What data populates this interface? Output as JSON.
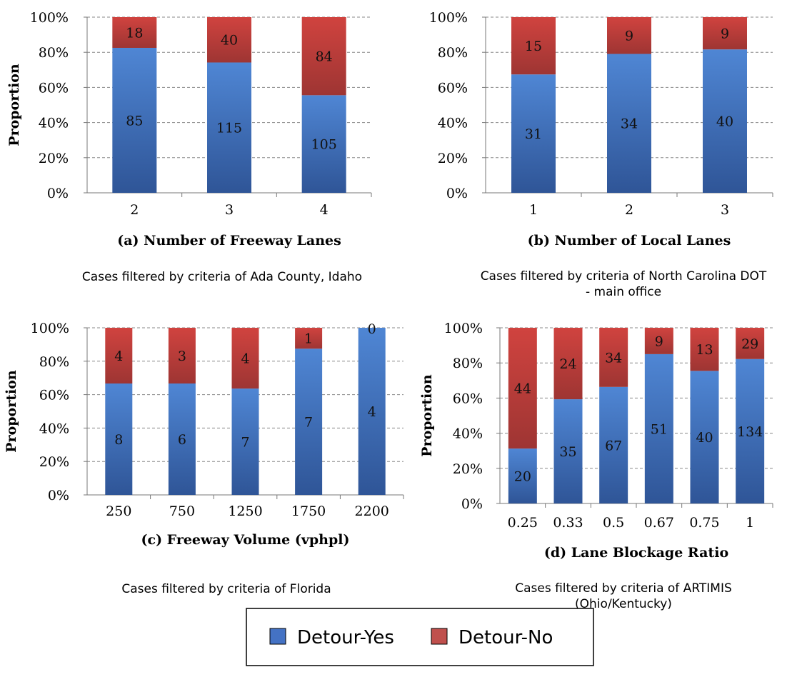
{
  "colors": {
    "detour_yes": "#4472c4",
    "detour_yes_dark": "#2f5597",
    "detour_no": "#c0504d",
    "detour_no_dark": "#943634",
    "gridline": "#888888"
  },
  "legend": {
    "items": [
      {
        "label": "Detour-Yes",
        "color": "#4472c4"
      },
      {
        "label": "Detour-No",
        "color": "#c0504d"
      }
    ]
  },
  "chart_data": [
    {
      "type": "bar",
      "stacked": "percent",
      "title": "(a) Number of Freeway Lanes",
      "xlabel": "(a) Number of Freeway Lanes",
      "ylabel": "Proportion",
      "caption": "Cases filtered by criteria of Ada County, Idaho",
      "categories": [
        "2",
        "3",
        "4"
      ],
      "series": [
        {
          "name": "Detour-Yes",
          "values": [
            85,
            115,
            105
          ]
        },
        {
          "name": "Detour-No",
          "values": [
            18,
            40,
            84
          ]
        }
      ],
      "yticks": [
        "0%",
        "20%",
        "40%",
        "60%",
        "80%",
        "100%"
      ],
      "ylim": [
        0,
        100
      ],
      "grid": "dashed-horizontal"
    },
    {
      "type": "bar",
      "stacked": "percent",
      "title": "(b) Number of Local Lanes",
      "xlabel": "(b) Number of Local Lanes",
      "ylabel": "",
      "caption": "Cases filtered by criteria of North Carolina DOT - main office",
      "categories": [
        "1",
        "2",
        "3"
      ],
      "series": [
        {
          "name": "Detour-Yes",
          "values": [
            31,
            34,
            40
          ]
        },
        {
          "name": "Detour-No",
          "values": [
            15,
            9,
            9
          ]
        }
      ],
      "yticks": [
        "0%",
        "20%",
        "40%",
        "60%",
        "80%",
        "100%"
      ],
      "ylim": [
        0,
        100
      ],
      "grid": "dashed-horizontal"
    },
    {
      "type": "bar",
      "stacked": "percent",
      "title": "(c) Freeway Volume (vphpl)",
      "xlabel": "(c) Freeway Volume (vphpl)",
      "ylabel": "Proportion",
      "caption": "Cases filtered by criteria of Florida",
      "categories": [
        "250",
        "750",
        "1250",
        "1750",
        "2200"
      ],
      "series": [
        {
          "name": "Detour-Yes",
          "values": [
            8,
            6,
            7,
            7,
            4
          ]
        },
        {
          "name": "Detour-No",
          "values": [
            4,
            3,
            4,
            1,
            0
          ]
        }
      ],
      "yticks": [
        "0%",
        "20%",
        "40%",
        "60%",
        "80%",
        "100%"
      ],
      "ylim": [
        0,
        100
      ],
      "grid": "dashed-horizontal"
    },
    {
      "type": "bar",
      "stacked": "percent",
      "title": "(d) Lane Blockage Ratio",
      "xlabel": "(d) Lane Blockage Ratio",
      "ylabel": "Proportion",
      "caption": "Cases filtered by criteria of ARTIMIS (Ohio/Kentucky)",
      "categories": [
        "0.25",
        "0.33",
        "0.5",
        "0.67",
        "0.75",
        "1"
      ],
      "series": [
        {
          "name": "Detour-Yes",
          "values": [
            20,
            35,
            67,
            51,
            40,
            134
          ]
        },
        {
          "name": "Detour-No",
          "values": [
            44,
            24,
            34,
            9,
            13,
            29
          ]
        }
      ],
      "yticks": [
        "0%",
        "20%",
        "40%",
        "60%",
        "80%",
        "100%"
      ],
      "ylim": [
        0,
        100
      ],
      "grid": "dashed-horizontal"
    }
  ]
}
